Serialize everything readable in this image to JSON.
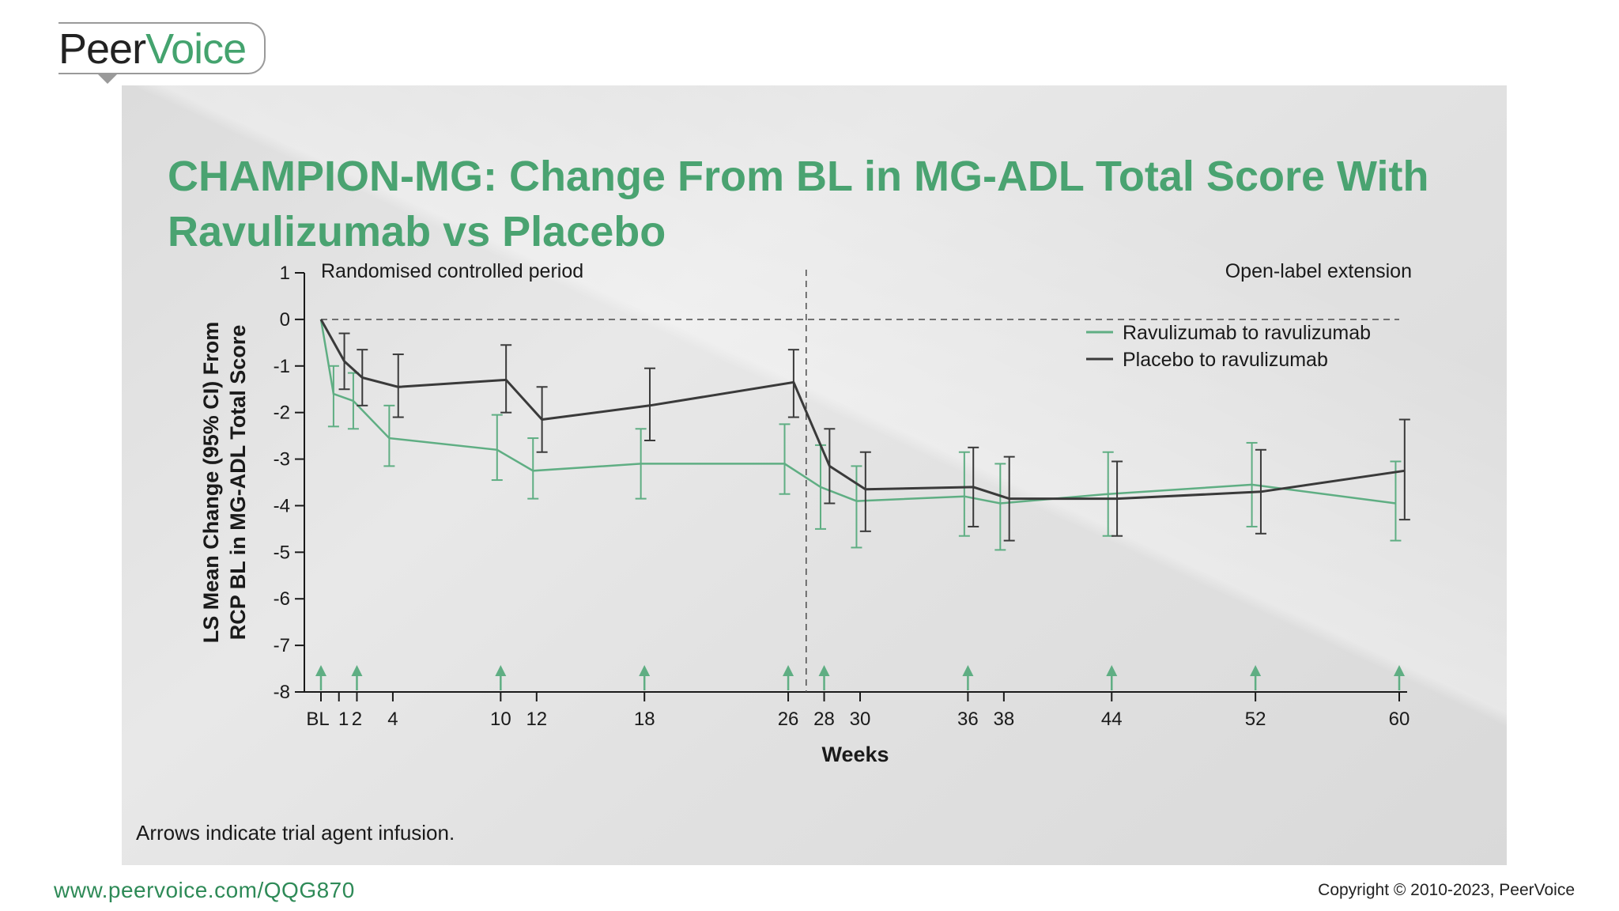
{
  "branding": {
    "logo_peer": "Peer",
    "logo_voice": "Voice"
  },
  "slide": {
    "title": "CHAMPION-MG: Change From BL in MG-ADL Total Score With Ravulizumab vs Placebo",
    "footnote": "Arrows indicate trial agent infusion.",
    "url": "www.peervoice.com/QQG870",
    "copyright": "Copyright © 2010-2023, PeerVoice"
  },
  "colors": {
    "title": "#4aa371",
    "ravulizumab": "#5fae83",
    "placebo": "#3a3a3a",
    "arrow": "#5fae83"
  },
  "chart_data": {
    "type": "line",
    "xlabel": "Weeks",
    "ylabel_line1": "LS Mean Change (95% CI) From",
    "ylabel_line2": "RCP BL in MG-ADL Total Score",
    "ylim": [
      -8,
      1
    ],
    "yticks": [
      1,
      0,
      -1,
      -2,
      -3,
      -4,
      -5,
      -6,
      -7,
      -8
    ],
    "xticks": [
      {
        "value": 0,
        "label": "BL"
      },
      {
        "value": 1,
        "label": "1"
      },
      {
        "value": 2,
        "label": "2"
      },
      {
        "value": 4,
        "label": "4"
      },
      {
        "value": 10,
        "label": "10"
      },
      {
        "value": 12,
        "label": "12"
      },
      {
        "value": 18,
        "label": "18"
      },
      {
        "value": 26,
        "label": "26"
      },
      {
        "value": 28,
        "label": "28"
      },
      {
        "value": 30,
        "label": "30"
      },
      {
        "value": 36,
        "label": "36"
      },
      {
        "value": 38,
        "label": "38"
      },
      {
        "value": 44,
        "label": "44"
      },
      {
        "value": 52,
        "label": "52"
      },
      {
        "value": 60,
        "label": "60"
      }
    ],
    "period_divider_week": 27,
    "reference_line_y": 0,
    "period_labels": {
      "left": "Randomised controlled period",
      "right": "Open-label extension"
    },
    "infusion_arrows_weeks": [
      0,
      2,
      10,
      18,
      26,
      28,
      36,
      44,
      52,
      60
    ],
    "legend_position": "upper-right",
    "series": [
      {
        "name": "Ravulizumab to ravulizumab",
        "points": [
          {
            "x": 0,
            "y": 0,
            "lo": 0,
            "hi": 0
          },
          {
            "x": 0.7,
            "y": -1.6,
            "lo": -2.3,
            "hi": -1.0
          },
          {
            "x": 1.8,
            "y": -1.75,
            "lo": -2.35,
            "hi": -1.15
          },
          {
            "x": 3.8,
            "y": -2.55,
            "lo": -3.15,
            "hi": -1.85
          },
          {
            "x": 9.8,
            "y": -2.8,
            "lo": -3.45,
            "hi": -2.05
          },
          {
            "x": 11.8,
            "y": -3.25,
            "lo": -3.85,
            "hi": -2.55
          },
          {
            "x": 17.8,
            "y": -3.1,
            "lo": -3.85,
            "hi": -2.35
          },
          {
            "x": 25.8,
            "y": -3.1,
            "lo": -3.75,
            "hi": -2.25
          },
          {
            "x": 27.8,
            "y": -3.6,
            "lo": -4.5,
            "hi": -2.7
          },
          {
            "x": 29.8,
            "y": -3.9,
            "lo": -4.9,
            "hi": -3.15
          },
          {
            "x": 35.8,
            "y": -3.8,
            "lo": -4.65,
            "hi": -2.85
          },
          {
            "x": 37.8,
            "y": -3.95,
            "lo": -4.95,
            "hi": -3.1
          },
          {
            "x": 43.8,
            "y": -3.75,
            "lo": -4.65,
            "hi": -2.85
          },
          {
            "x": 51.8,
            "y": -3.55,
            "lo": -4.45,
            "hi": -2.65
          },
          {
            "x": 59.8,
            "y": -3.95,
            "lo": -4.75,
            "hi": -3.05
          }
        ]
      },
      {
        "name": "Placebo to ravulizumab",
        "points": [
          {
            "x": 0,
            "y": 0,
            "lo": 0,
            "hi": 0
          },
          {
            "x": 1.3,
            "y": -0.9,
            "lo": -1.5,
            "hi": -0.3
          },
          {
            "x": 2.3,
            "y": -1.25,
            "lo": -1.85,
            "hi": -0.65
          },
          {
            "x": 4.3,
            "y": -1.45,
            "lo": -2.1,
            "hi": -0.75
          },
          {
            "x": 10.3,
            "y": -1.3,
            "lo": -2.0,
            "hi": -0.55
          },
          {
            "x": 12.3,
            "y": -2.15,
            "lo": -2.85,
            "hi": -1.45
          },
          {
            "x": 18.3,
            "y": -1.85,
            "lo": -2.6,
            "hi": -1.05
          },
          {
            "x": 26.3,
            "y": -1.35,
            "lo": -2.1,
            "hi": -0.65
          },
          {
            "x": 28.3,
            "y": -3.15,
            "lo": -3.95,
            "hi": -2.35
          },
          {
            "x": 30.3,
            "y": -3.65,
            "lo": -4.55,
            "hi": -2.85
          },
          {
            "x": 36.3,
            "y": -3.6,
            "lo": -4.45,
            "hi": -2.75
          },
          {
            "x": 38.3,
            "y": -3.85,
            "lo": -4.75,
            "hi": -2.95
          },
          {
            "x": 44.3,
            "y": -3.85,
            "lo": -4.65,
            "hi": -3.05
          },
          {
            "x": 52.3,
            "y": -3.7,
            "lo": -4.6,
            "hi": -2.8
          },
          {
            "x": 60.3,
            "y": -3.25,
            "lo": -4.3,
            "hi": -2.15
          }
        ]
      }
    ]
  }
}
